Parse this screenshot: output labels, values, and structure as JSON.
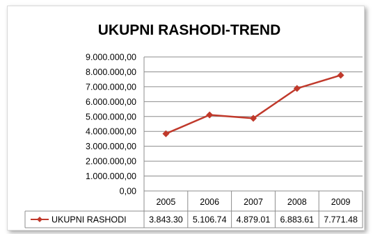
{
  "chart_data": {
    "type": "line",
    "title": "UKUPNI RASHODI-TREND",
    "categories": [
      "2005",
      "2006",
      "2007",
      "2008",
      "2009"
    ],
    "series": [
      {
        "name": "UKUPNI RASHODI",
        "values": [
          3843300,
          5106740,
          4879010,
          6883610,
          7771480
        ],
        "table_labels": [
          "3.843.30",
          "5.106.74",
          "4.879.01",
          "6.883.61",
          "7.771.48"
        ],
        "color": "#c0392b"
      }
    ],
    "yticks": [
      "0,00",
      "1.000.000,00",
      "2.000.000,00",
      "3.000.000,00",
      "4.000.000,00",
      "5.000.000,00",
      "6.000.000,00",
      "7.000.000,00",
      "8.000.000,00",
      "9.000.000,00"
    ],
    "ylim": [
      0,
      9000000
    ],
    "ystep": 1000000,
    "grid": true,
    "legend": "data-table-bottom"
  }
}
